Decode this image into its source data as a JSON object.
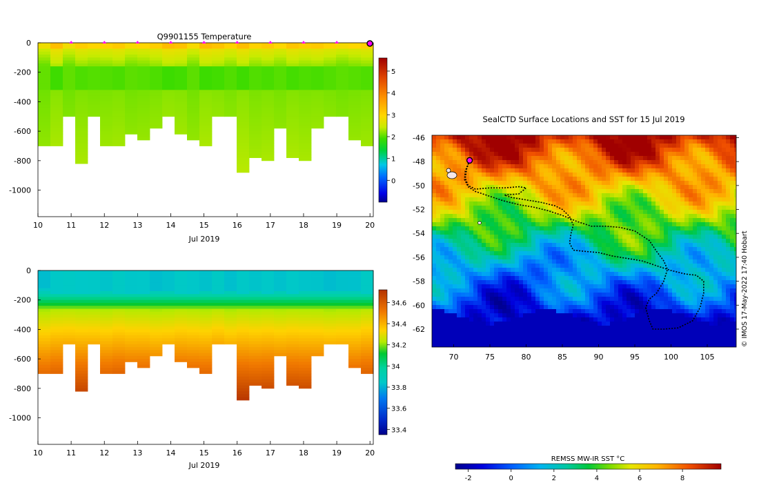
{
  "chart_data": [
    {
      "type": "heatmap",
      "title": "Q9901155  Temperature",
      "variable": "temperature",
      "xlabel": "Jul 2019",
      "xlim": [
        10,
        20.1
      ],
      "ylim": [
        -1180,
        0
      ],
      "xticks": [
        "10",
        "11",
        "12",
        "13",
        "14",
        "15",
        "16",
        "17",
        "18",
        "19",
        "20"
      ],
      "yticks": [
        "0",
        "-200",
        "-400",
        "-600",
        "-800",
        "-1000"
      ],
      "colorbar": {
        "ticks": [
          "0",
          "1",
          "2",
          "3",
          "4",
          "5"
        ],
        "min": -1,
        "max": 5.6
      },
      "profile_markers_day": [
        11,
        12,
        13,
        14,
        15,
        16,
        17,
        18,
        19
      ],
      "latest_marker_day": 20
    },
    {
      "type": "heatmap",
      "title": "",
      "variable": "salinity",
      "xlabel": "Jul 2019",
      "xlim": [
        10,
        20.1
      ],
      "ylim": [
        -1180,
        0
      ],
      "xticks": [
        "10",
        "11",
        "12",
        "13",
        "14",
        "15",
        "16",
        "17",
        "18",
        "19",
        "20"
      ],
      "yticks": [
        "0",
        "-200",
        "-400",
        "-600",
        "-800",
        "-1000"
      ],
      "colorbar": {
        "ticks": [
          "33.4",
          "33.6",
          "33.8",
          "34",
          "34.2",
          "34.4",
          "34.6"
        ],
        "min": 33.35,
        "max": 34.72
      }
    },
    {
      "type": "map",
      "title": "SealCTD Surface Locations and SST for 15 Jul 2019",
      "xlim": [
        67,
        109
      ],
      "ylim": [
        -63.5,
        -45.8
      ],
      "xticks": [
        "70",
        "75",
        "80",
        "85",
        "90",
        "95",
        "100",
        "105"
      ],
      "yticks": [
        "-46",
        "-48",
        "-50",
        "-52",
        "-54",
        "-56",
        "-58",
        "-60",
        "-62"
      ],
      "colorbar_label": "REMSS MW-IR SST °C",
      "colorbar_ticks": [
        "-2",
        "0",
        "2",
        "4",
        "6",
        "8"
      ],
      "colorbar_range": [
        -2.6,
        9.8
      ],
      "credit": "© IMOS 17-May-2022 17:40 Hobart",
      "current_position": {
        "lon": 72.2,
        "lat": -47.9
      },
      "track": [
        [
          72.2,
          -47.9
        ],
        [
          71.8,
          -48.6
        ],
        [
          71.6,
          -49.4
        ],
        [
          72.0,
          -50.0
        ],
        [
          73.0,
          -50.3
        ],
        [
          75.0,
          -50.2
        ],
        [
          77.0,
          -50.2
        ],
        [
          79.0,
          -50.1
        ],
        [
          80.0,
          -50.2
        ],
        [
          79.0,
          -50.7
        ],
        [
          77.0,
          -50.8
        ],
        [
          78.0,
          -51.0
        ],
        [
          80.0,
          -51.2
        ],
        [
          82.0,
          -51.4
        ],
        [
          84.0,
          -51.7
        ],
        [
          85.0,
          -52.0
        ],
        [
          86.0,
          -52.6
        ],
        [
          86.5,
          -53.3
        ],
        [
          86.2,
          -54.0
        ],
        [
          86.0,
          -54.8
        ],
        [
          86.5,
          -55.4
        ],
        [
          88.0,
          -55.5
        ],
        [
          90.0,
          -55.6
        ],
        [
          92.0,
          -55.9
        ],
        [
          94.0,
          -56.1
        ],
        [
          96.0,
          -56.3
        ],
        [
          98.0,
          -56.7
        ],
        [
          100.0,
          -57.1
        ],
        [
          102.0,
          -57.4
        ],
        [
          103.5,
          -57.5
        ],
        [
          104.5,
          -58.0
        ],
        [
          104.5,
          -59.0
        ],
        [
          104.0,
          -60.2
        ],
        [
          103.0,
          -61.3
        ],
        [
          101.0,
          -61.9
        ],
        [
          99.0,
          -62.0
        ],
        [
          97.5,
          -62.0
        ],
        [
          97.0,
          -61.3
        ],
        [
          96.5,
          -60.2
        ],
        [
          97.0,
          -59.5
        ],
        [
          98.0,
          -59.0
        ],
        [
          99.0,
          -58.0
        ],
        [
          99.5,
          -57.0
        ],
        [
          99.0,
          -56.3
        ],
        [
          98.0,
          -55.5
        ],
        [
          97.0,
          -54.6
        ],
        [
          95.0,
          -53.8
        ],
        [
          93.0,
          -53.5
        ],
        [
          91.0,
          -53.4
        ],
        [
          89.0,
          -53.4
        ],
        [
          87.0,
          -53.0
        ],
        [
          85.0,
          -52.5
        ],
        [
          83.0,
          -52.1
        ],
        [
          81.0,
          -51.8
        ],
        [
          79.0,
          -51.6
        ],
        [
          77.0,
          -51.3
        ],
        [
          75.0,
          -50.9
        ],
        [
          73.0,
          -50.5
        ],
        [
          72.0,
          -50.1
        ],
        [
          71.5,
          -49.5
        ],
        [
          71.6,
          -48.8
        ],
        [
          72.2,
          -47.9
        ]
      ]
    }
  ]
}
